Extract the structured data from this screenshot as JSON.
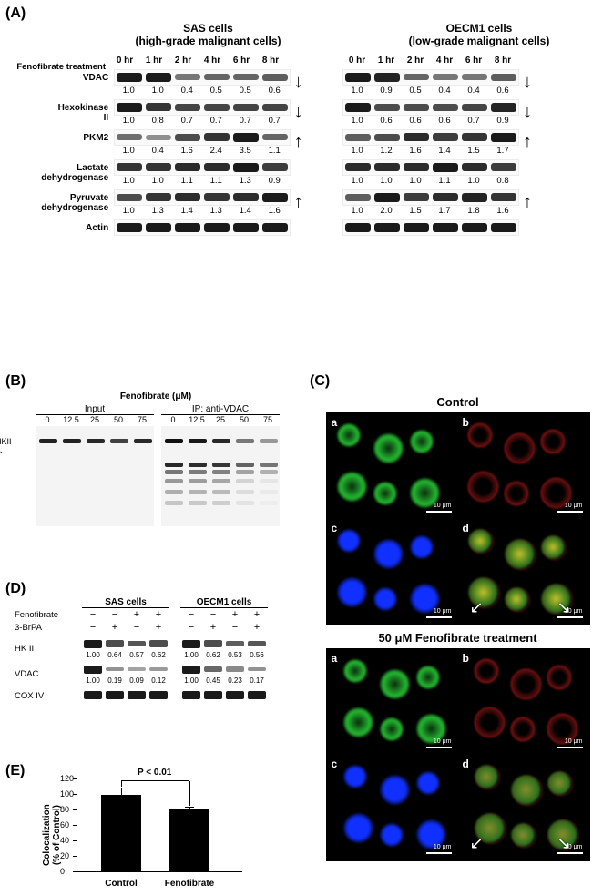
{
  "panelA": {
    "label": "(A)",
    "treatment_label": "Fenofibrate treatment",
    "time_points": [
      "0 hr",
      "1 hr",
      "2 hr",
      "4 hr",
      "6 hr",
      "8 hr"
    ],
    "left": {
      "title_line1": "SAS cells",
      "title_line2": "(high-grade malignant cells)",
      "proteins": [
        {
          "name": "VDAC",
          "values": [
            "1.0",
            "1.0",
            "0.4",
            "0.5",
            "0.5",
            "0.6"
          ],
          "intensities": [
            1.0,
            1.0,
            0.45,
            0.55,
            0.55,
            0.6
          ],
          "arrow": "down"
        },
        {
          "name": "Hexokinase II",
          "values": [
            "1.0",
            "0.8",
            "0.7",
            "0.7",
            "0.7",
            "0.7"
          ],
          "intensities": [
            1.0,
            0.85,
            0.75,
            0.75,
            0.75,
            0.75
          ],
          "arrow": "down"
        },
        {
          "name": "PKM2",
          "values": [
            "1.0",
            "0.4",
            "1.6",
            "2.4",
            "3.5",
            "1.1"
          ],
          "intensities": [
            0.5,
            0.3,
            0.7,
            0.85,
            1.0,
            0.55
          ],
          "arrow": "up"
        },
        {
          "name": "Lactate dehydrogenase",
          "values": [
            "1.0",
            "1.0",
            "1.1",
            "1.1",
            "1.3",
            "0.9"
          ],
          "intensities": [
            0.85,
            0.85,
            0.9,
            0.9,
            1.0,
            0.8
          ],
          "arrow": ""
        },
        {
          "name": "Pyruvate dehydrogenase",
          "values": [
            "1.0",
            "1.3",
            "1.4",
            "1.3",
            "1.4",
            "1.6"
          ],
          "intensities": [
            0.7,
            0.85,
            0.9,
            0.85,
            0.9,
            1.0
          ],
          "arrow": "up"
        },
        {
          "name": "Actin",
          "values": [],
          "intensities": [
            1.0,
            1.0,
            1.0,
            1.0,
            1.0,
            1.0
          ],
          "arrow": ""
        }
      ]
    },
    "right": {
      "title_line1": "OECM1 cells",
      "title_line2": "(low-grade malignant cells)",
      "proteins": [
        {
          "name": "",
          "values": [
            "1.0",
            "0.9",
            "0.5",
            "0.4",
            "0.4",
            "0.6"
          ],
          "intensities": [
            1.0,
            0.95,
            0.55,
            0.45,
            0.45,
            0.6
          ],
          "arrow": "down"
        },
        {
          "name": "",
          "values": [
            "1.0",
            "0.6",
            "0.6",
            "0.6",
            "0.7",
            "0.9"
          ],
          "intensities": [
            1.0,
            0.7,
            0.7,
            0.7,
            0.75,
            0.95
          ],
          "arrow": "down"
        },
        {
          "name": "",
          "values": [
            "1.0",
            "1.2",
            "1.6",
            "1.4",
            "1.5",
            "1.7"
          ],
          "intensities": [
            0.6,
            0.7,
            0.9,
            0.8,
            0.85,
            1.0
          ],
          "arrow": "up"
        },
        {
          "name": "",
          "values": [
            "1.0",
            "1.0",
            "1.0",
            "1.1",
            "1.0",
            "0.8"
          ],
          "intensities": [
            0.9,
            0.9,
            0.9,
            1.0,
            0.9,
            0.8
          ],
          "arrow": ""
        },
        {
          "name": "",
          "values": [
            "1.0",
            "2.0",
            "1.5",
            "1.7",
            "1.8",
            "1.6"
          ],
          "intensities": [
            0.6,
            1.0,
            0.8,
            0.9,
            0.95,
            0.85
          ],
          "arrow": "up"
        },
        {
          "name": "",
          "values": [],
          "intensities": [
            1.0,
            1.0,
            1.0,
            1.0,
            1.0,
            1.0
          ],
          "arrow": ""
        }
      ]
    }
  },
  "panelB": {
    "label": "(B)",
    "top_label": "Fenofibrate (μM)",
    "input_label": "Input",
    "ip_label": "IP: anti-VDAC",
    "conc": [
      "0",
      "12.5",
      "25",
      "50",
      "75"
    ],
    "hk2_label": "HKII",
    "input_intensities": [
      0.9,
      0.9,
      0.85,
      0.7,
      0.85
    ],
    "ip_intensities": [
      1.0,
      0.95,
      0.85,
      0.35,
      0.15
    ]
  },
  "panelC": {
    "label": "(C)",
    "control_title": "Control",
    "treated_title": "50 μM Fenofibrate treatment",
    "sub_labels": [
      "a",
      "b",
      "c",
      "d"
    ],
    "scale_text": "10 μm",
    "colors": {
      "green": "#2bdc3a",
      "red": "#e02020",
      "blue": "#1030ff",
      "yellow": "#d8c030",
      "bg": "#000000"
    }
  },
  "panelD": {
    "label": "(D)",
    "cell_left": "SAS cells",
    "cell_right": "OECM1 cells",
    "row_feno": "Fenofibrate",
    "row_3brpa": "3-BrPA",
    "signs": [
      "−",
      "−",
      "+",
      "+"
    ],
    "signs2": [
      "−",
      "+",
      "−",
      "+"
    ],
    "proteins": [
      {
        "name": "HK II",
        "vals_l": [
          "1.00",
          "0.64",
          "0.57",
          "0.62"
        ],
        "vals_r": [
          "1.00",
          "0.62",
          "0.53",
          "0.56"
        ],
        "int_l": [
          1.0,
          0.7,
          0.65,
          0.7
        ],
        "int_r": [
          1.0,
          0.7,
          0.6,
          0.65
        ]
      },
      {
        "name": "VDAC",
        "vals_l": [
          "1.00",
          "0.19",
          "0.09",
          "0.12"
        ],
        "vals_r": [
          "1.00",
          "0.45",
          "0.23",
          "0.17"
        ],
        "int_l": [
          1.0,
          0.3,
          0.2,
          0.25
        ],
        "int_r": [
          1.0,
          0.55,
          0.35,
          0.3
        ]
      },
      {
        "name": "COX IV",
        "vals_l": [],
        "vals_r": [],
        "int_l": [
          1.0,
          1.0,
          1.0,
          1.0
        ],
        "int_r": [
          1.0,
          1.0,
          1.0,
          1.0
        ]
      }
    ]
  },
  "panelE": {
    "label": "(E)",
    "type": "bar",
    "ylabel": "Colocalization\n(% of Control)",
    "yticks": [
      0,
      20,
      40,
      60,
      80,
      100,
      120
    ],
    "ylim": [
      0,
      120
    ],
    "categories": [
      "Control",
      "Fenofibrate"
    ],
    "values": [
      100,
      81
    ],
    "errors": [
      8,
      3
    ],
    "bar_color": "#000000",
    "bg": "#ffffff",
    "ptext": "P < 0.01"
  }
}
